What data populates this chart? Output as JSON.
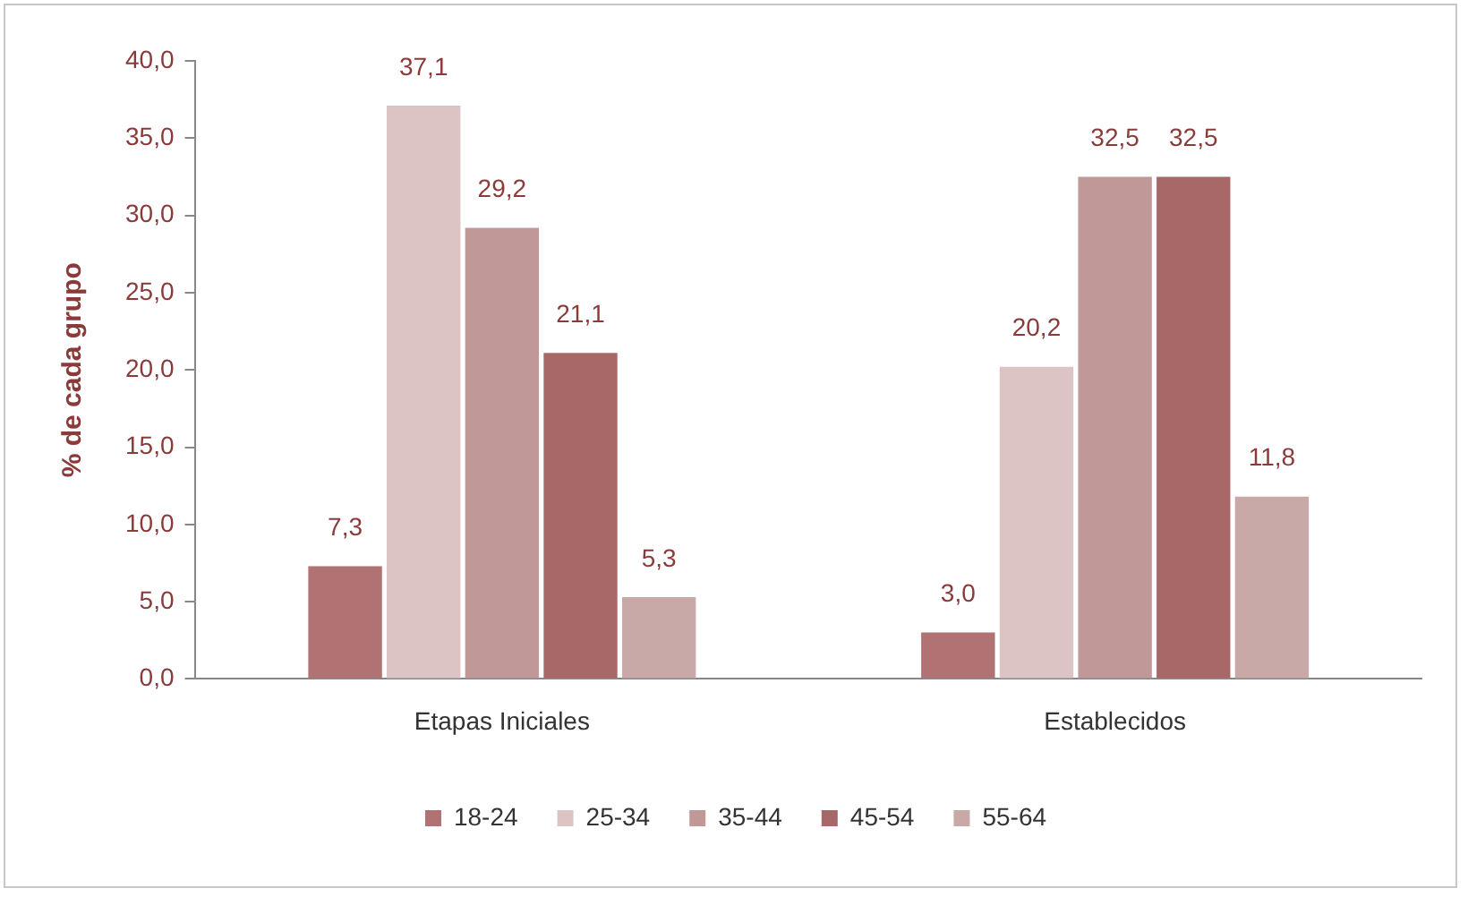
{
  "chart_data": {
    "type": "bar",
    "ylabel": "% de cada grupo",
    "categories": [
      "Etapas Iniciales",
      "Establecidos"
    ],
    "series": [
      {
        "name": "18-24",
        "color": "#b07272",
        "values": [
          7.3,
          3.0
        ]
      },
      {
        "name": "25-34",
        "color": "#dcc4c4",
        "values": [
          37.1,
          20.2
        ]
      },
      {
        "name": "35-44",
        "color": "#c09898",
        "values": [
          29.2,
          32.5
        ]
      },
      {
        "name": "45-54",
        "color": "#a96868",
        "values": [
          21.1,
          32.5
        ]
      },
      {
        "name": "55-64",
        "color": "#c9a8a8",
        "values": [
          5.3,
          11.8
        ]
      }
    ],
    "ylim": [
      0,
      40
    ],
    "yticks": [
      {
        "value": 0,
        "label": "0,0"
      },
      {
        "value": 5,
        "label": "5,0"
      },
      {
        "value": 10,
        "label": "10,0"
      },
      {
        "value": 15,
        "label": "15,0"
      },
      {
        "value": 20,
        "label": "20,0"
      },
      {
        "value": 25,
        "label": "25,0"
      },
      {
        "value": 30,
        "label": "30,0"
      },
      {
        "value": 35,
        "label": "35,0"
      },
      {
        "value": 40,
        "label": "40,0"
      }
    ],
    "value_labels": [
      [
        "7,3",
        "3,0"
      ],
      [
        "37,1",
        "20,2"
      ],
      [
        "29,2",
        "32,5"
      ],
      [
        "21,1",
        "32,5"
      ],
      [
        "5,3",
        "11,8"
      ]
    ],
    "grid": false,
    "legend": "bottom"
  }
}
